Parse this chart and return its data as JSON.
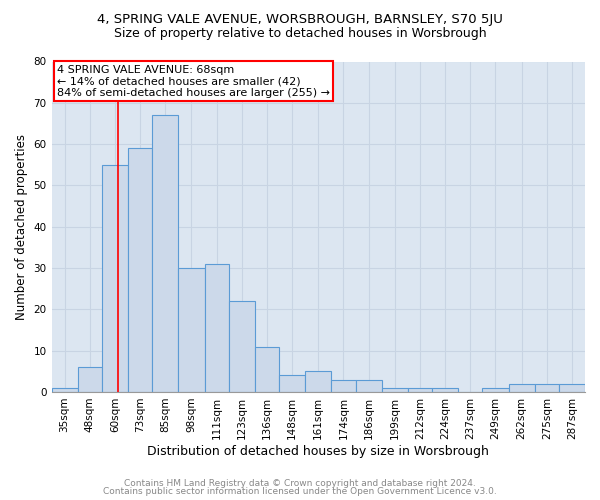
{
  "title1": "4, SPRING VALE AVENUE, WORSBROUGH, BARNSLEY, S70 5JU",
  "title2": "Size of property relative to detached houses in Worsbrough",
  "xlabel": "Distribution of detached houses by size in Worsbrough",
  "ylabel": "Number of detached properties",
  "footnote1": "Contains HM Land Registry data © Crown copyright and database right 2024.",
  "footnote2": "Contains public sector information licensed under the Open Government Licence v3.0.",
  "annotation_line1": "4 SPRING VALE AVENUE: 68sqm",
  "annotation_line2": "← 14% of detached houses are smaller (42)",
  "annotation_line3": "84% of semi-detached houses are larger (255) →",
  "property_size": 68,
  "bar_categories": [
    "35sqm",
    "48sqm",
    "60sqm",
    "73sqm",
    "85sqm",
    "98sqm",
    "111sqm",
    "123sqm",
    "136sqm",
    "148sqm",
    "161sqm",
    "174sqm",
    "186sqm",
    "199sqm",
    "212sqm",
    "224sqm",
    "237sqm",
    "249sqm",
    "262sqm",
    "275sqm",
    "287sqm"
  ],
  "bar_left_edges": [
    35,
    48,
    60,
    73,
    85,
    98,
    111,
    123,
    136,
    148,
    161,
    174,
    186,
    199,
    212,
    224,
    237,
    249,
    262,
    275,
    287
  ],
  "bar_widths": [
    13,
    12,
    13,
    12,
    13,
    13,
    12,
    13,
    12,
    13,
    13,
    12,
    13,
    13,
    12,
    13,
    12,
    13,
    13,
    12,
    13
  ],
  "bar_heights": [
    1,
    6,
    55,
    59,
    67,
    30,
    31,
    22,
    11,
    4,
    5,
    3,
    3,
    1,
    1,
    1,
    0,
    1,
    2,
    2,
    2
  ],
  "bar_color": "#ccd9ea",
  "bar_edge_color": "#5b9bd5",
  "grid_color": "#c8d4e3",
  "vline_x": 68,
  "vline_color": "red",
  "annotation_box_color": "red",
  "ylim": [
    0,
    80
  ],
  "yticks": [
    0,
    10,
    20,
    30,
    40,
    50,
    60,
    70,
    80
  ],
  "background_color": "#dce6f1",
  "title1_fontsize": 9.5,
  "title2_fontsize": 9,
  "xlabel_fontsize": 9,
  "ylabel_fontsize": 8.5,
  "annotation_fontsize": 8,
  "footnote_fontsize": 6.5,
  "tick_fontsize": 7.5
}
